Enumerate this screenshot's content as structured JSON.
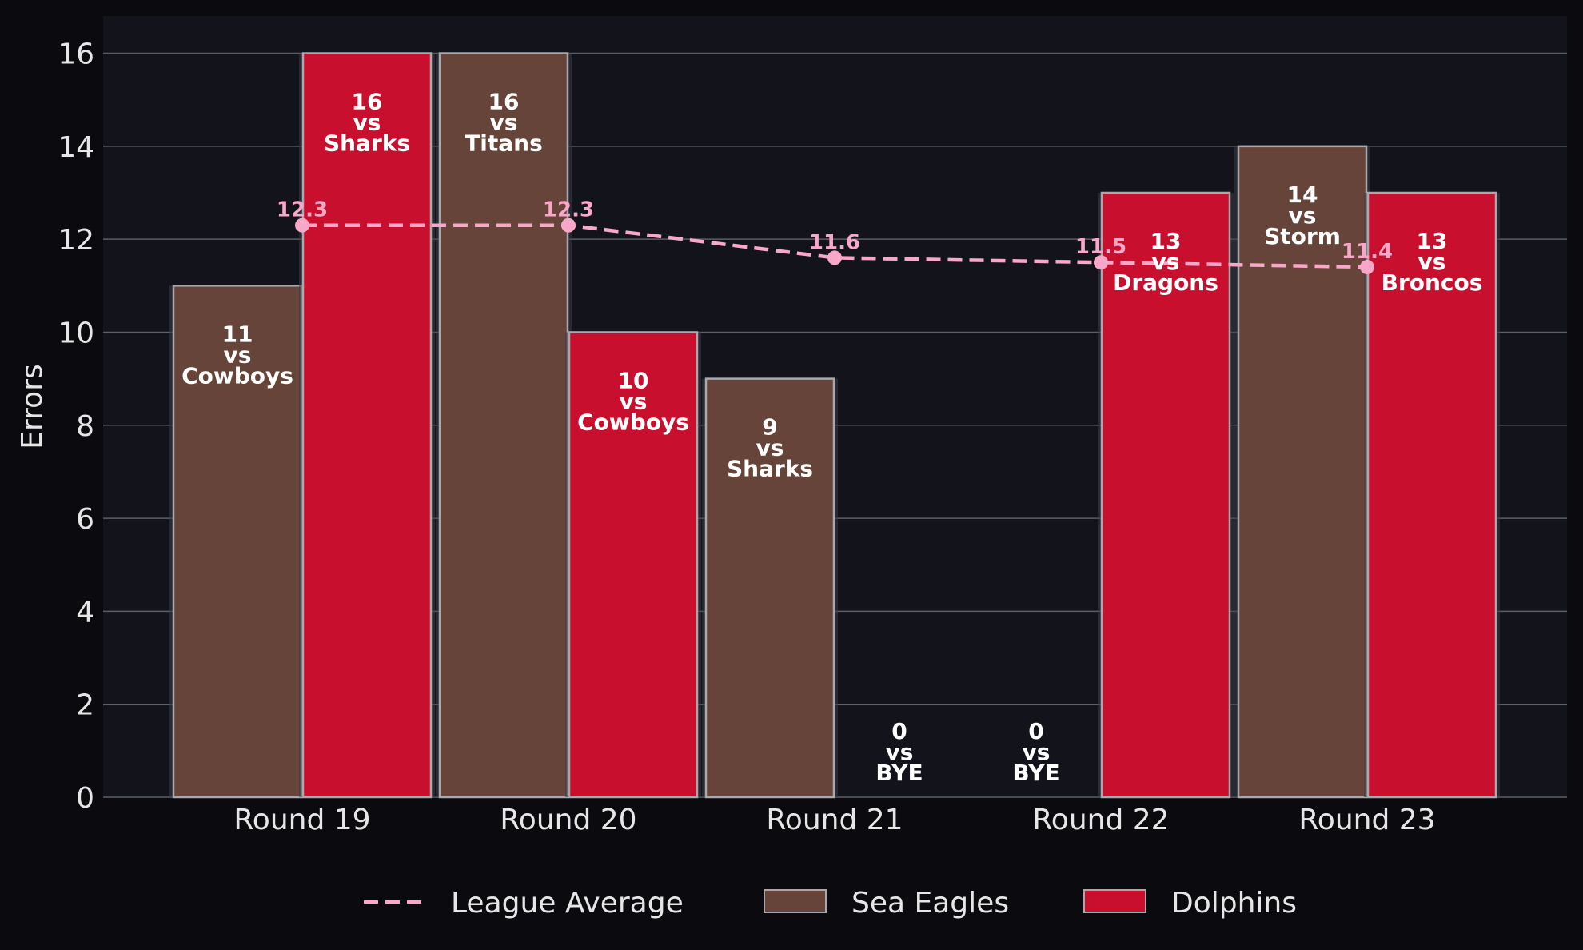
{
  "chart_data": {
    "type": "bar",
    "categories": [
      "Round 19",
      "Round 20",
      "Round 21",
      "Round 22",
      "Round 23"
    ],
    "ylabel": "Errors",
    "xlabel": "",
    "ylim": [
      0,
      16.8
    ],
    "yticks": [
      0,
      2,
      4,
      6,
      8,
      10,
      12,
      14,
      16
    ],
    "grid": true,
    "legend_position": "bottom-center",
    "series": [
      {
        "name": "Sea Eagles",
        "color": "#67443a",
        "values": [
          11,
          16,
          9,
          0,
          14
        ],
        "labels": [
          [
            "11",
            "vs",
            "Cowboys"
          ],
          [
            "16",
            "vs",
            "Titans"
          ],
          [
            "9",
            "vs",
            "Sharks"
          ],
          [
            "0",
            "vs",
            "BYE"
          ],
          [
            "14",
            "vs",
            "Storm"
          ]
        ]
      },
      {
        "name": "Dolphins",
        "color": "#c8102e",
        "values": [
          16,
          10,
          0,
          13,
          13
        ],
        "labels": [
          [
            "16",
            "vs",
            "Sharks"
          ],
          [
            "10",
            "vs",
            "Cowboys"
          ],
          [
            "0",
            "vs",
            "BYE"
          ],
          [
            "13",
            "vs",
            "Dragons"
          ],
          [
            "13",
            "vs",
            "Broncos"
          ]
        ]
      }
    ],
    "line": {
      "name": "League Average",
      "color": "#f7a8c8",
      "style": "dashed",
      "values": [
        12.3,
        12.3,
        11.6,
        11.5,
        11.4
      ],
      "labels": [
        "12.3",
        "12.3",
        "11.6",
        "11.5",
        "11.4"
      ]
    }
  }
}
